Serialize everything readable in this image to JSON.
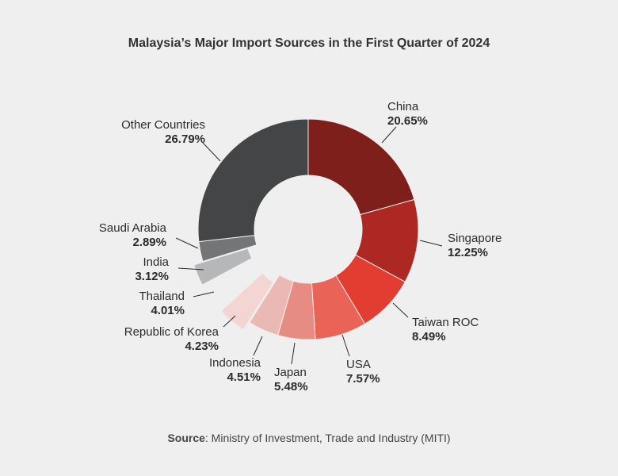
{
  "chart_data": {
    "type": "pie",
    "variant": "donut",
    "title": "Malaysia’s Major Import Sources in the First Quarter of 2024",
    "unit": "%",
    "slices": [
      {
        "label": "China",
        "value": 20.65,
        "display": "20.65%",
        "color": "#7f1f1c"
      },
      {
        "label": "Singapore",
        "value": 12.25,
        "display": "12.25%",
        "color": "#ad2723"
      },
      {
        "label": "Taiwan ROC",
        "value": 8.49,
        "display": "8.49%",
        "color": "#e23d30"
      },
      {
        "label": "USA",
        "value": 7.57,
        "display": "7.57%",
        "color": "#ea6357"
      },
      {
        "label": "Japan",
        "value": 5.48,
        "display": "5.48%",
        "color": "#e68c82"
      },
      {
        "label": "Indonesia",
        "value": 4.51,
        "display": "4.51%",
        "color": "#ebb9b3"
      },
      {
        "label": "Republic of Korea",
        "value": 4.23,
        "display": "4.23%",
        "color": "#f3d6d3",
        "exploded": true
      },
      {
        "label": "Thailand",
        "value": 4.01,
        "display": "4.01%",
        "color": "#efefef",
        "hidden": true
      },
      {
        "label": "India",
        "value": 3.12,
        "display": "3.12%",
        "color": "#b6b7b9",
        "exploded": true
      },
      {
        "label": "Saudi Arabia",
        "value": 2.89,
        "display": "2.89%",
        "color": "#747577"
      },
      {
        "label": "Other Countries",
        "value": 26.79,
        "display": "26.79%",
        "color": "#444547"
      }
    ]
  },
  "source": {
    "label": "Source",
    "text": ": Ministry of Investment, Trade and Industry (MITI)"
  }
}
